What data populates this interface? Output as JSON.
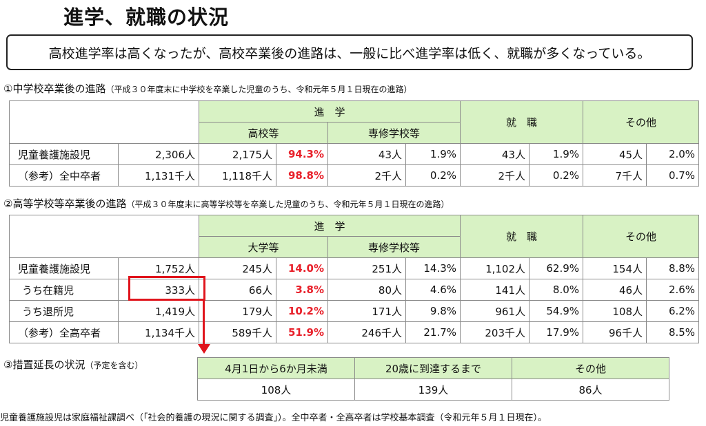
{
  "title": "進学、就職の状況",
  "summary": "高校進学率は高くなったが、高校卒業後の進路は、一般に比べ進学率は低く、就職が多くなっている。",
  "section1": {
    "title": "①中学校卒業後の進路",
    "note": "（平成３０年度末に中学校を卒業した児童のうち、令和元年５月１日現在の進路）",
    "headers": {
      "shingaku": "進　学",
      "sub1": "高校等",
      "sub2": "専修学校等",
      "shushoku": "就　職",
      "other": "その他"
    },
    "rows": [
      {
        "label": "児童養護施設児",
        "total": "2,306人",
        "c1": "2,175人",
        "c1p": "94.3%",
        "c2": "43人",
        "c2p": "1.9%",
        "job": "43人",
        "jobp": "1.9%",
        "oth": "45人",
        "othp": "2.0%"
      },
      {
        "label": "（参考）全中卒者",
        "total": "1,131千人",
        "c1": "1,118千人",
        "c1p": "98.8%",
        "c2": "2千人",
        "c2p": "0.2%",
        "job": "2千人",
        "jobp": "0.2%",
        "oth": "7千人",
        "othp": "0.7%"
      }
    ]
  },
  "section2": {
    "title": "②高等学校等卒業後の進路",
    "note": "（平成３０年度末に高等学校等を卒業した児童のうち、令和元年５月１日現在の進路）",
    "headers": {
      "shingaku": "進　学",
      "sub1": "大学等",
      "sub2": "専修学校等",
      "shushoku": "就　職",
      "other": "その他"
    },
    "rows": [
      {
        "label": "児童養護施設児",
        "total": "1,752人",
        "c1": "245人",
        "c1p": "14.0%",
        "c2": "251人",
        "c2p": "14.3%",
        "job": "1,102人",
        "jobp": "62.9%",
        "oth": "154人",
        "othp": "8.8%"
      },
      {
        "label": "うち在籍児",
        "total": "333人",
        "c1": "66人",
        "c1p": "3.8%",
        "c2": "80人",
        "c2p": "4.6%",
        "job": "141人",
        "jobp": "8.0%",
        "oth": "46人",
        "othp": "2.6%"
      },
      {
        "label": "うち退所児",
        "total": "1,419人",
        "c1": "179人",
        "c1p": "10.2%",
        "c2": "171人",
        "c2p": "9.8%",
        "job": "961人",
        "jobp": "54.9%",
        "oth": "108人",
        "othp": "6.2%"
      },
      {
        "label": "（参考）全高卒者",
        "total": "1,134千人",
        "c1": "589千人",
        "c1p": "51.9%",
        "c2": "246千人",
        "c2p": "21.7%",
        "job": "203千人",
        "jobp": "17.9%",
        "oth": "96千人",
        "othp": "8.5%"
      }
    ]
  },
  "section3": {
    "title": "③措置延長の状況",
    "note": "（予定を含む）",
    "headers": [
      "4月1日から6か月未満",
      "20歳に到達するまで",
      "その他"
    ],
    "values": [
      "108人",
      "139人",
      "86人"
    ]
  },
  "footer": "児童養護施設児は家庭福祉課調べ（「社会的養護の現況に関する調査」）。全中卒者・全高卒者は学校基本調査（令和元年５月１日現在）。",
  "colors": {
    "header_bg": "#d8f2c4",
    "highlight": "#e0141c",
    "rate": "#e8202a"
  }
}
